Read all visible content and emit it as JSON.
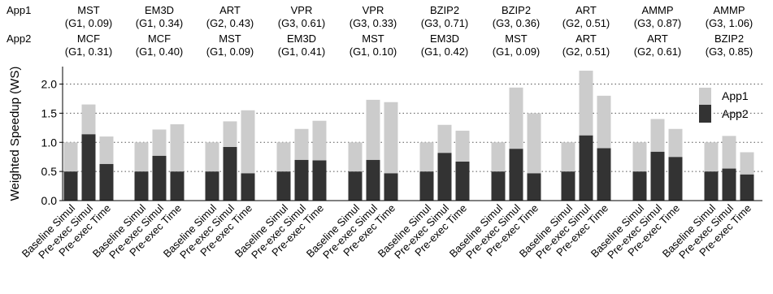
{
  "chart_data": {
    "type": "bar",
    "stacked": true,
    "row_labels": [
      "App1",
      "App2"
    ],
    "groups": [
      {
        "app1": "MST",
        "app1_info": "(G1, 0.09)",
        "app2": "MCF",
        "app2_info": "(G1, 0.31)"
      },
      {
        "app1": "EM3D",
        "app1_info": "(G1, 0.34)",
        "app2": "MCF",
        "app2_info": "(G1, 0.40)"
      },
      {
        "app1": "ART",
        "app1_info": "(G2, 0.43)",
        "app2": "MST",
        "app2_info": "(G1, 0.09)"
      },
      {
        "app1": "VPR",
        "app1_info": "(G3, 0.61)",
        "app2": "EM3D",
        "app2_info": "(G1, 0.41)"
      },
      {
        "app1": "VPR",
        "app1_info": "(G3, 0.33)",
        "app2": "MST",
        "app2_info": "(G1, 0.10)"
      },
      {
        "app1": "BZIP2",
        "app1_info": "(G3, 0.71)",
        "app2": "EM3D",
        "app2_info": "(G1, 0.42)"
      },
      {
        "app1": "BZIP2",
        "app1_info": "(G3, 0.36)",
        "app2": "MST",
        "app2_info": "(G1, 0.09)"
      },
      {
        "app1": "ART",
        "app1_info": "(G2, 0.51)",
        "app2": "ART",
        "app2_info": "(G2, 0.51)"
      },
      {
        "app1": "AMMP",
        "app1_info": "(G3, 0.87)",
        "app2": "ART",
        "app2_info": "(G2, 0.61)"
      },
      {
        "app1": "AMMP",
        "app1_info": "(G3, 1.06)",
        "app2": "BZIP2",
        "app2_info": "(G3, 0.85)"
      }
    ],
    "categories": [
      "Baseline Simul",
      "Pre-exec Simul",
      "Pre-exec Time"
    ],
    "series": [
      {
        "name": "App1",
        "color": "#cccccc",
        "values": [
          [
            0.5,
            0.51,
            0.47
          ],
          [
            0.5,
            0.45,
            0.81
          ],
          [
            0.5,
            0.44,
            1.08
          ],
          [
            0.5,
            0.53,
            0.68
          ],
          [
            0.5,
            1.03,
            1.22
          ],
          [
            0.5,
            0.48,
            0.53
          ],
          [
            0.5,
            1.05,
            1.03
          ],
          [
            0.5,
            1.11,
            0.9
          ],
          [
            0.5,
            0.56,
            0.48
          ],
          [
            0.5,
            0.56,
            0.38
          ]
        ]
      },
      {
        "name": "App2",
        "color": "#333333",
        "values": [
          [
            0.5,
            1.14,
            0.63
          ],
          [
            0.5,
            0.77,
            0.5
          ],
          [
            0.5,
            0.92,
            0.47
          ],
          [
            0.5,
            0.7,
            0.69
          ],
          [
            0.5,
            0.7,
            0.47
          ],
          [
            0.5,
            0.82,
            0.67
          ],
          [
            0.5,
            0.89,
            0.47
          ],
          [
            0.5,
            1.12,
            0.9
          ],
          [
            0.5,
            0.84,
            0.75
          ],
          [
            0.5,
            0.55,
            0.45
          ]
        ]
      }
    ],
    "ylabel": "Weighted Speedup (WS)",
    "ylim": [
      0,
      2.3
    ],
    "yticks": [
      0.0,
      0.5,
      1.0,
      1.5,
      2.0
    ],
    "grid": true,
    "legend_position": "top-right"
  }
}
